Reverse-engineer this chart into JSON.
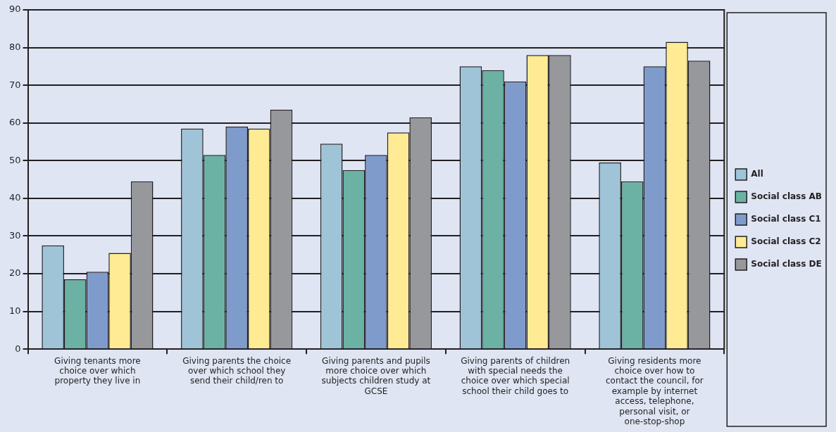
{
  "chart_data": {
    "type": "bar",
    "categories": [
      "Giving tenants more choice over which property they live in",
      "Giving parents the choice over which school they send their child/ren to",
      "Giving parents and pupils more choice over which subjects children study at GCSE",
      "Giving parents of children with special needs the choice over which special school their child goes to",
      "Giving residents more choice over how to contact the council, for example by internet access, telephone, personal visit, or one-stop-shop"
    ],
    "series": [
      {
        "name": "All",
        "color": "#9fc4d8",
        "values": [
          27.5,
          58.5,
          54.5,
          75,
          49.5
        ]
      },
      {
        "name": "Social class AB",
        "color": "#6bb2a4",
        "values": [
          18.5,
          51.5,
          47.5,
          74,
          44.5
        ]
      },
      {
        "name": "Social class C1",
        "color": "#7f9bcc",
        "values": [
          20.5,
          59,
          51.5,
          71,
          75
        ]
      },
      {
        "name": "Social class C2",
        "color": "#feeb94",
        "values": [
          25.5,
          58.5,
          57.5,
          78,
          81.5
        ]
      },
      {
        "name": "Social class DE",
        "color": "#97989c",
        "values": [
          44.5,
          63.5,
          61.5,
          78,
          76.5
        ]
      }
    ],
    "ylim": [
      0,
      90
    ],
    "yticks": [
      0,
      10,
      20,
      30,
      40,
      50,
      60,
      70,
      80,
      90
    ],
    "grid": "y",
    "legend": "right"
  }
}
